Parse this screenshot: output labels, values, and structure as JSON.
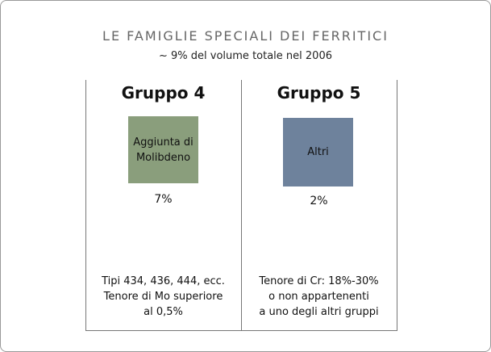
{
  "header": {
    "title": "LE FAMIGLIE SPECIALI DEI FERRITICI",
    "subtitle": "~ 9% del volume totale nel 2006"
  },
  "groups": [
    {
      "title": "Gruppo 4",
      "box_label": "Aggiunta di Molibdeno",
      "share": "7%",
      "description": [
        "Tipi 434, 436, 444, ecc.",
        "Tenore di Mo superiore",
        "al 0,5%"
      ]
    },
    {
      "title": "Gruppo 5",
      "box_label": "Altri",
      "share": "2%",
      "description": [
        "Tenore di Cr: 18%-30%",
        "o non appartenenti",
        "a uno degli altri gruppi"
      ]
    }
  ]
}
